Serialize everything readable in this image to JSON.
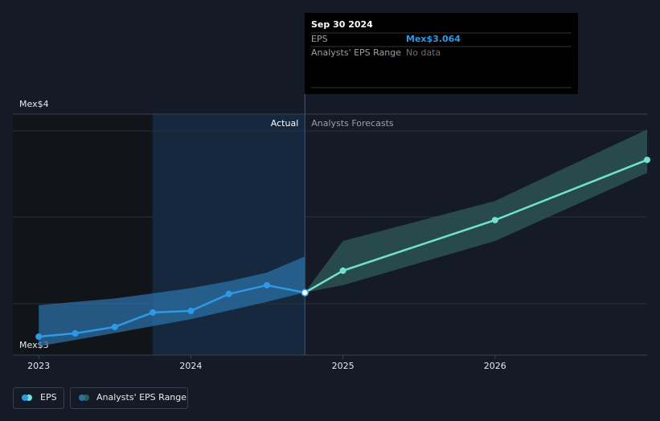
{
  "chart_data": {
    "type": "line",
    "xlim": [
      2022.83,
      2027.0
    ],
    "xticks": [
      {
        "value": 2023,
        "label": "2023"
      },
      {
        "value": 2024,
        "label": "2024"
      },
      {
        "value": 2025,
        "label": "2025"
      },
      {
        "value": 2026,
        "label": "2026"
      }
    ],
    "ylim": [
      2.702,
      4.098
    ],
    "yticks": [
      {
        "value": 3,
        "label": "Mex$3"
      },
      {
        "value": 4,
        "label": "Mex$4"
      }
    ],
    "grid": true,
    "highlight_x": [
      2023.75,
      2024.75
    ],
    "annotations": [
      "Actual",
      "Analysts Forecasts"
    ],
    "series": [
      {
        "name": "EPS",
        "color": "#2e9ae6",
        "x": [
          2023.0,
          2023.24,
          2023.5,
          2023.75,
          2024.0,
          2024.25,
          2024.5,
          2024.75
        ],
        "values": [
          2.809,
          2.828,
          2.865,
          2.949,
          2.958,
          3.056,
          3.107,
          3.064
        ]
      },
      {
        "color": "#6fe3d0",
        "x": [
          2024.75,
          2025.0,
          2026.0,
          2027.0
        ],
        "values": [
          3.064,
          3.191,
          3.484,
          3.833
        ]
      }
    ],
    "ranges": [
      {
        "name": "Analysts' EPS Range",
        "color": "#2b6fa6",
        "x": [
          2023.0,
          2023.24,
          2023.5,
          2023.75,
          2024.0,
          2024.25,
          2024.5,
          2024.75
        ],
        "low": [
          2.753,
          2.79,
          2.83,
          2.87,
          2.91,
          2.96,
          3.01,
          3.065
        ],
        "high": [
          2.991,
          3.01,
          3.03,
          3.06,
          3.09,
          3.13,
          3.18,
          3.274
        ]
      },
      {
        "color": "#2f5b57",
        "x": [
          2024.75,
          2025.0,
          2026.0,
          2027.0
        ],
        "low": [
          3.065,
          3.107,
          3.363,
          3.758
        ],
        "high": [
          3.065,
          3.363,
          3.595,
          4.009
        ]
      }
    ],
    "tooltip": {
      "date": "Sep 30 2024",
      "rows": [
        {
          "label": "EPS",
          "value": "Mex$3.064"
        },
        {
          "label": "Analysts' EPS Range",
          "value": "No data"
        }
      ]
    }
  }
}
